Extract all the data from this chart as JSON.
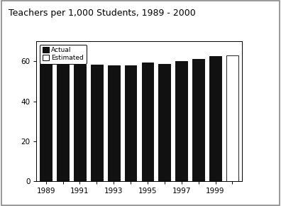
{
  "title": "Teachers per 1,000 Students, 1989 - 2000",
  "years": [
    1989,
    1990,
    1991,
    1992,
    1993,
    1994,
    1995,
    1996,
    1997,
    1998,
    1999,
    2000
  ],
  "values": [
    58.5,
    58.3,
    58.2,
    58.2,
    57.8,
    58.1,
    59.5,
    58.7,
    60.2,
    61.0,
    62.5,
    63.0
  ],
  "bar_colors": [
    "#111111",
    "#111111",
    "#111111",
    "#111111",
    "#111111",
    "#111111",
    "#111111",
    "#111111",
    "#111111",
    "#111111",
    "#111111",
    "#ffffff"
  ],
  "bar_edgecolors": [
    "#111111",
    "#111111",
    "#111111",
    "#111111",
    "#111111",
    "#111111",
    "#111111",
    "#111111",
    "#111111",
    "#111111",
    "#111111",
    "#222222"
  ],
  "ylim": [
    0,
    70
  ],
  "yticks": [
    0,
    20,
    40,
    60
  ],
  "xtick_labels": [
    "1989",
    "",
    "1991",
    "",
    "1993",
    "",
    "1995",
    "",
    "1997",
    "",
    "1999",
    ""
  ],
  "legend_actual_color": "#111111",
  "legend_estimated_color": "#ffffff",
  "background_color": "#ffffff",
  "plot_bg_color": "#ffffff",
  "outer_border_color": "#aaaaaa",
  "title_fontsize": 9,
  "tick_fontsize": 7.5
}
